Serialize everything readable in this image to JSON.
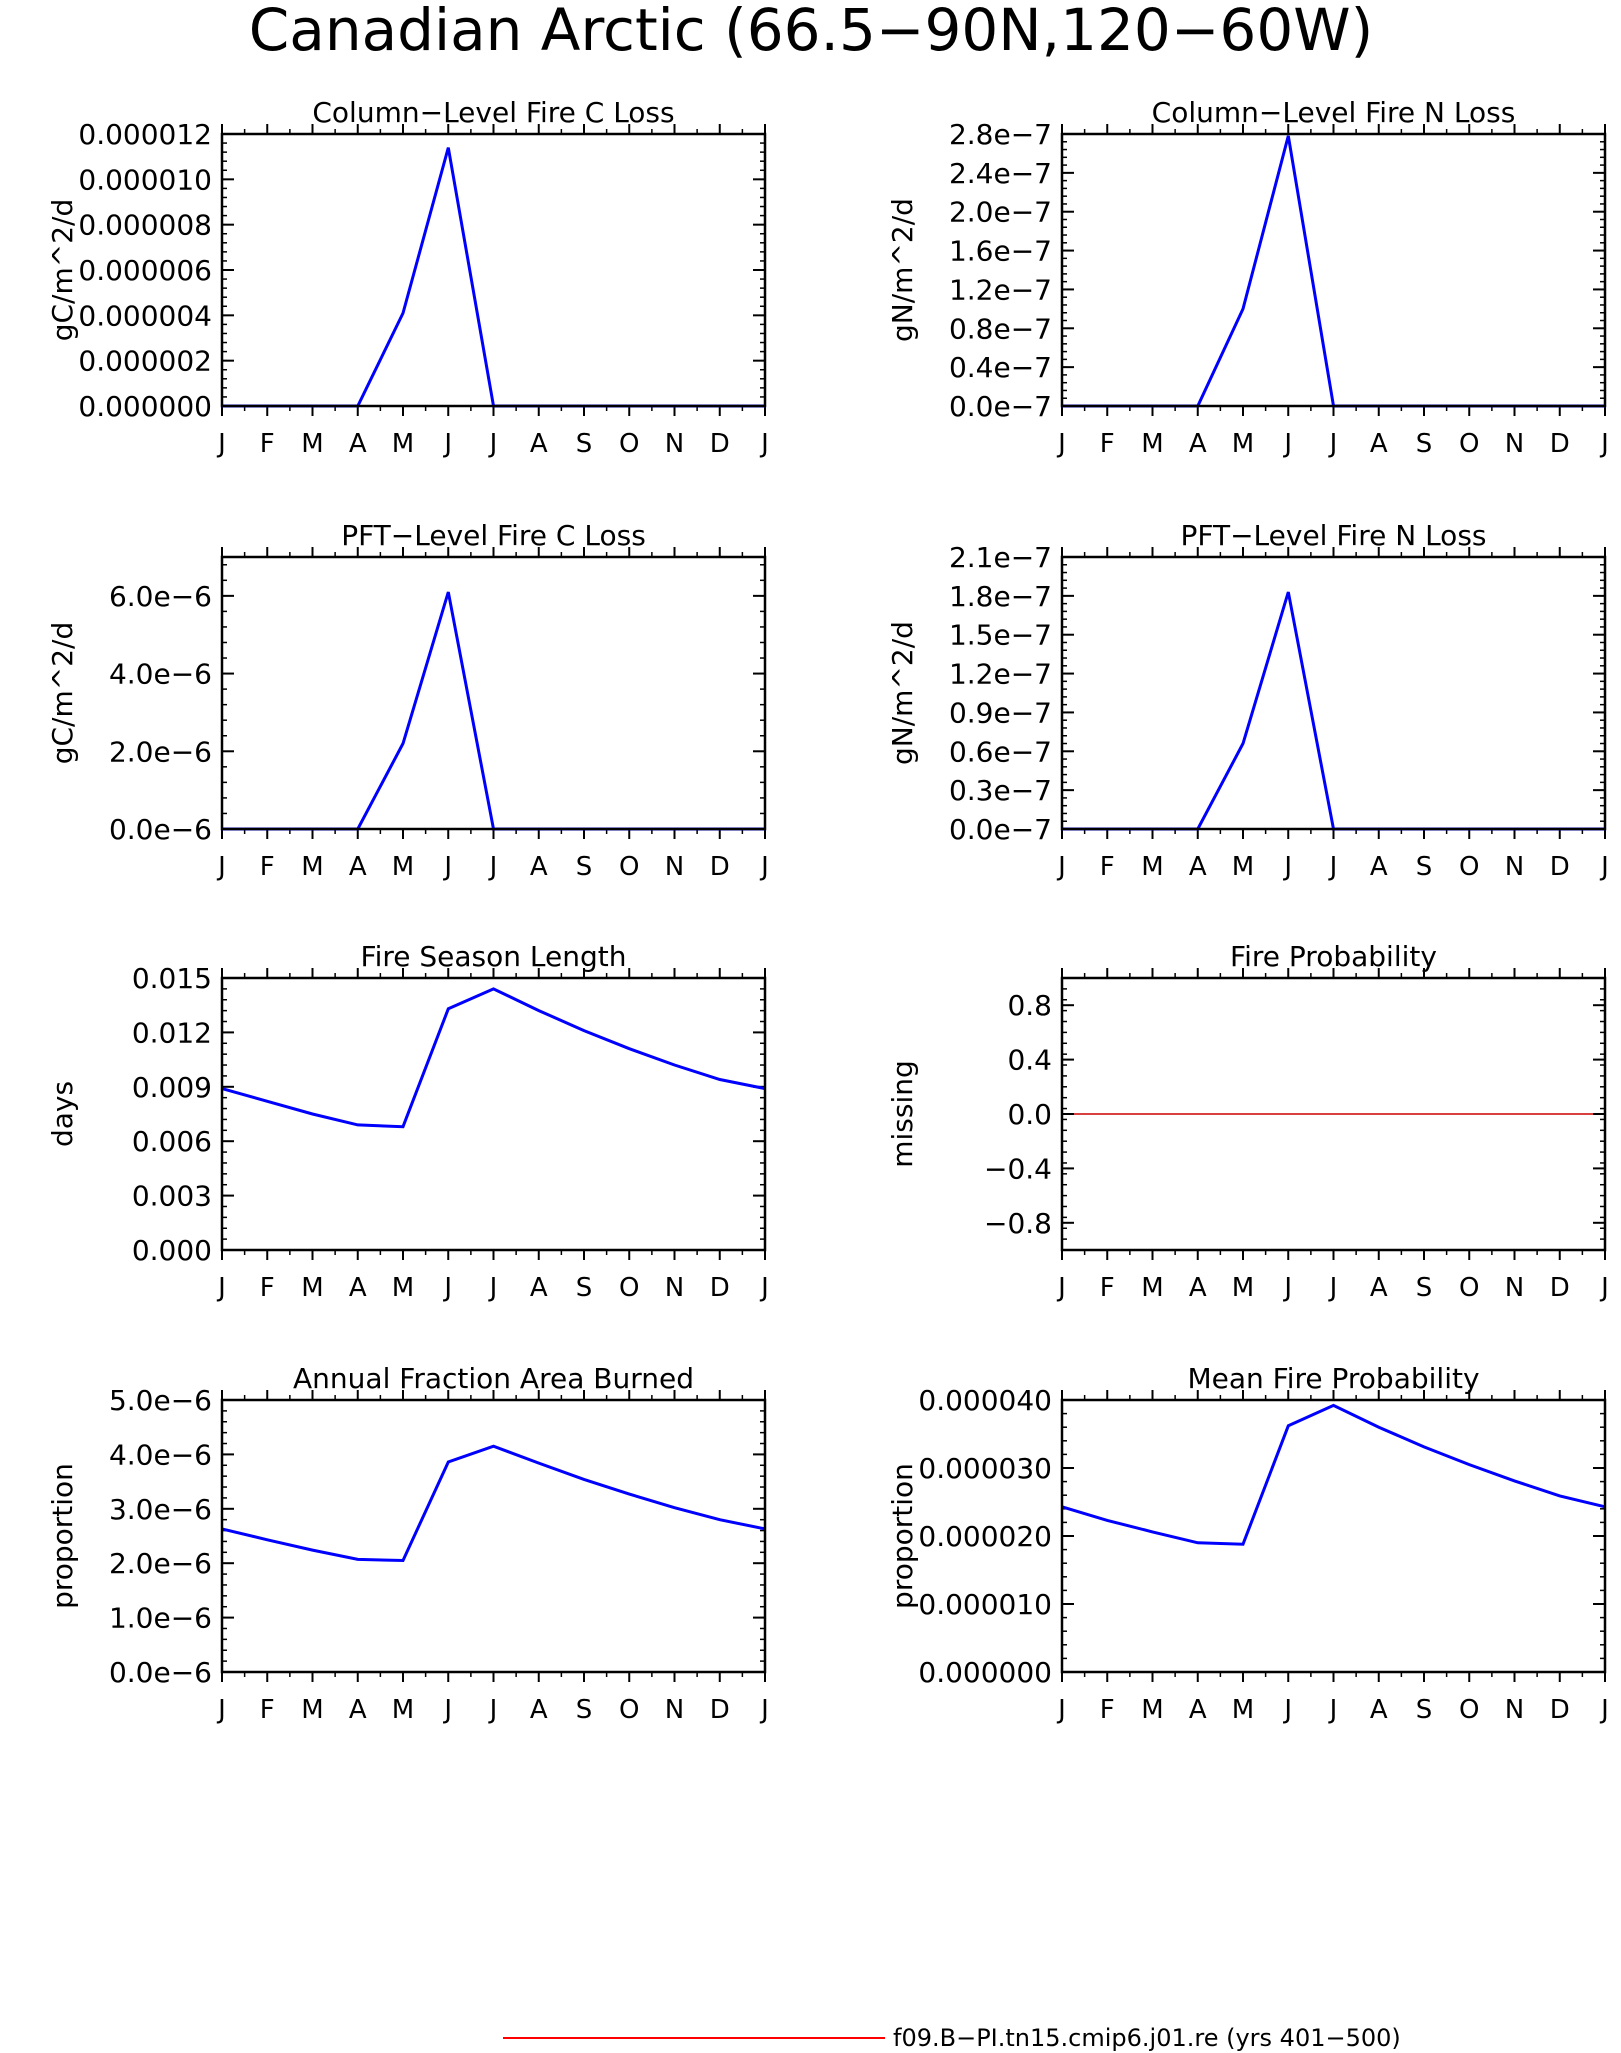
{
  "figure": {
    "title": "Canadian Arctic (66.5−90N,120−60W)",
    "legend": {
      "label": "f09.B−PI.tn15.cmip6.j01.re (yrs 401−500)",
      "color": "#ff0000"
    },
    "series_color": "#0000ff",
    "zero_line_color": "#cc0000"
  },
  "chart_data": [
    {
      "type": "line",
      "title": "Column−Level Fire C Loss",
      "ylabel": "gC/m^2/d",
      "x": [
        "J",
        "F",
        "M",
        "A",
        "M",
        "J",
        "J",
        "A",
        "S",
        "O",
        "N",
        "D",
        "J"
      ],
      "ylim": [
        0,
        1.2e-05
      ],
      "yticks": [
        0,
        2e-06,
        4e-06,
        6e-06,
        8e-06,
        1e-05,
        1.2e-05
      ],
      "yticklabels": [
        "0.000000",
        "0.000002",
        "0.000004",
        "0.000006",
        "0.000008",
        "0.000010",
        "0.000012"
      ],
      "series": [
        {
          "values": [
            0,
            0,
            0,
            0,
            4.1e-06,
            1.14e-05,
            0,
            0,
            0,
            0,
            0,
            0,
            0
          ]
        }
      ]
    },
    {
      "type": "line",
      "title": "Column−Level Fire N Loss",
      "ylabel": "gN/m^2/d",
      "x": [
        "J",
        "F",
        "M",
        "A",
        "M",
        "J",
        "J",
        "A",
        "S",
        "O",
        "N",
        "D",
        "J"
      ],
      "ylim": [
        0,
        2.8e-07
      ],
      "yticks": [
        0,
        4e-08,
        8e-08,
        1.2e-07,
        1.6e-07,
        2e-07,
        2.4e-07,
        2.8e-07
      ],
      "yticklabels": [
        "0.0e−7",
        "0.4e−7",
        "0.8e−7",
        "1.2e−7",
        "1.6e−7",
        "2.0e−7",
        "2.4e−7",
        "2.8e−7"
      ],
      "series": [
        {
          "values": [
            0,
            0,
            0,
            0,
            1e-07,
            2.78e-07,
            0,
            0,
            0,
            0,
            0,
            0,
            0
          ]
        }
      ]
    },
    {
      "type": "line",
      "title": "PFT−Level Fire C Loss",
      "ylabel": "gC/m^2/d",
      "x": [
        "J",
        "F",
        "M",
        "A",
        "M",
        "J",
        "J",
        "A",
        "S",
        "O",
        "N",
        "D",
        "J"
      ],
      "ylim": [
        0,
        7e-06
      ],
      "yticks": [
        0,
        2e-06,
        4e-06,
        6e-06
      ],
      "yticklabels": [
        "0.0e−6",
        "2.0e−6",
        "4.0e−6",
        "6.0e−6"
      ],
      "series": [
        {
          "values": [
            0,
            0,
            0,
            0,
            2.2e-06,
            6.1e-06,
            0,
            0,
            0,
            0,
            0,
            0,
            0
          ]
        }
      ]
    },
    {
      "type": "line",
      "title": "PFT−Level Fire N Loss",
      "ylabel": "gN/m^2/d",
      "x": [
        "J",
        "F",
        "M",
        "A",
        "M",
        "J",
        "J",
        "A",
        "S",
        "O",
        "N",
        "D",
        "J"
      ],
      "ylim": [
        0,
        2.1e-07
      ],
      "yticks": [
        0,
        3e-08,
        6e-08,
        9e-08,
        1.2e-07,
        1.5e-07,
        1.8e-07,
        2.1e-07
      ],
      "yticklabels": [
        "0.0e−7",
        "0.3e−7",
        "0.6e−7",
        "0.9e−7",
        "1.2e−7",
        "1.5e−7",
        "1.8e−7",
        "2.1e−7"
      ],
      "series": [
        {
          "values": [
            0,
            0,
            0,
            0,
            6.6e-08,
            1.83e-07,
            0,
            0,
            0,
            0,
            0,
            0,
            0
          ]
        }
      ]
    },
    {
      "type": "line",
      "title": "Fire Season Length",
      "ylabel": "days",
      "x": [
        "J",
        "F",
        "M",
        "A",
        "M",
        "J",
        "J",
        "A",
        "S",
        "O",
        "N",
        "D",
        "J"
      ],
      "ylim": [
        0,
        0.015
      ],
      "yticks": [
        0,
        0.003,
        0.006,
        0.009,
        0.012,
        0.015
      ],
      "yticklabels": [
        "0.000",
        "0.003",
        "0.006",
        "0.009",
        "0.012",
        "0.015"
      ],
      "series": [
        {
          "values": [
            0.0089,
            0.0082,
            0.0075,
            0.0069,
            0.0068,
            0.0133,
            0.0144,
            0.0132,
            0.0121,
            0.0111,
            0.0102,
            0.0094,
            0.0089
          ]
        }
      ]
    },
    {
      "type": "line",
      "title": "Fire Probability",
      "ylabel": "missing",
      "x": [
        "J",
        "F",
        "M",
        "A",
        "M",
        "J",
        "J",
        "A",
        "S",
        "O",
        "N",
        "D",
        "J"
      ],
      "ylim": [
        -1,
        1
      ],
      "yticks": [
        -0.8,
        -0.4,
        0,
        0.4,
        0.8
      ],
      "yticklabels": [
        "−0.8",
        "−0.4",
        "0.0",
        "0.4",
        "0.8"
      ],
      "series": []
    },
    {
      "type": "line",
      "title": "Annual Fraction Area Burned",
      "ylabel": "proportion",
      "x": [
        "J",
        "F",
        "M",
        "A",
        "M",
        "J",
        "J",
        "A",
        "S",
        "O",
        "N",
        "D",
        "J"
      ],
      "ylim": [
        0,
        5e-06
      ],
      "yticks": [
        0,
        1e-06,
        2e-06,
        3e-06,
        4e-06,
        5e-06
      ],
      "yticklabels": [
        "0.0e−6",
        "1.0e−6",
        "2.0e−6",
        "3.0e−6",
        "4.0e−6",
        "5.0e−6"
      ],
      "series": [
        {
          "values": [
            2.63e-06,
            2.43e-06,
            2.24e-06,
            2.07e-06,
            2.05e-06,
            3.86e-06,
            4.15e-06,
            3.84e-06,
            3.54e-06,
            3.27e-06,
            3.02e-06,
            2.8e-06,
            2.63e-06
          ]
        }
      ]
    },
    {
      "type": "line",
      "title": "Mean Fire Probability",
      "ylabel": "proportion",
      "x": [
        "J",
        "F",
        "M",
        "A",
        "M",
        "J",
        "J",
        "A",
        "S",
        "O",
        "N",
        "D",
        "J"
      ],
      "ylim": [
        0,
        4e-05
      ],
      "yticks": [
        0,
        1e-05,
        2e-05,
        3e-05,
        4e-05
      ],
      "yticklabels": [
        "0.000000",
        "0.000010",
        "0.000020",
        "0.000030",
        "0.000040"
      ],
      "series": [
        {
          "values": [
            2.43e-05,
            2.23e-05,
            2.06e-05,
            1.9e-05,
            1.88e-05,
            3.62e-05,
            3.92e-05,
            3.6e-05,
            3.31e-05,
            3.05e-05,
            2.81e-05,
            2.59e-05,
            2.43e-05
          ]
        }
      ]
    }
  ]
}
